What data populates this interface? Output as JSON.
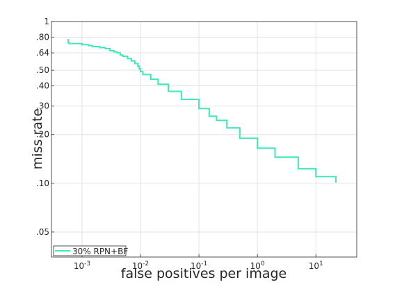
{
  "chart_data": {
    "type": "line",
    "title": "",
    "xlabel": "false positives per image",
    "ylabel": "miss rate",
    "x_scale": "log",
    "y_scale": "log",
    "xlim": [
      0.0003,
      50
    ],
    "ylim": [
      0.035,
      1
    ],
    "grid": true,
    "x_ticks": [
      {
        "value": 0.001,
        "base": "10",
        "exp": "-3"
      },
      {
        "value": 0.01,
        "base": "10",
        "exp": "-2"
      },
      {
        "value": 0.1,
        "base": "10",
        "exp": "-1"
      },
      {
        "value": 1,
        "base": "10",
        "exp": "0"
      },
      {
        "value": 10,
        "base": "10",
        "exp": "1"
      }
    ],
    "y_ticks": [
      {
        "value": 1,
        "label": "1"
      },
      {
        "value": 0.8,
        "label": ".80"
      },
      {
        "value": 0.64,
        "label": ".64"
      },
      {
        "value": 0.5,
        "label": ".50"
      },
      {
        "value": 0.4,
        "label": ".40"
      },
      {
        "value": 0.3,
        "label": ".30"
      },
      {
        "value": 0.2,
        "label": ".20"
      },
      {
        "value": 0.1,
        "label": ".10"
      },
      {
        "value": 0.05,
        "label": ".05"
      }
    ],
    "legend": {
      "placement": "bottom-left",
      "entries": [
        "30% RPN+BF"
      ]
    },
    "series": [
      {
        "name": "30% RPN+BF",
        "color": "#3fe8b8",
        "x": [
          0.00058,
          0.00058,
          0.0006,
          0.001,
          0.0013,
          0.0015,
          0.002,
          0.0025,
          0.003,
          0.0035,
          0.004,
          0.0045,
          0.005,
          0.006,
          0.007,
          0.008,
          0.009,
          0.0095,
          0.01,
          0.011,
          0.015,
          0.02,
          0.03,
          0.05,
          0.1,
          0.15,
          0.2,
          0.3,
          0.5,
          1,
          2,
          5,
          10,
          22
        ],
        "y": [
          0.78,
          0.74,
          0.73,
          0.72,
          0.71,
          0.7,
          0.69,
          0.68,
          0.66,
          0.65,
          0.64,
          0.62,
          0.61,
          0.59,
          0.57,
          0.55,
          0.53,
          0.51,
          0.49,
          0.47,
          0.44,
          0.41,
          0.37,
          0.33,
          0.29,
          0.26,
          0.245,
          0.22,
          0.19,
          0.165,
          0.145,
          0.123,
          0.11,
          0.101
        ]
      }
    ]
  }
}
